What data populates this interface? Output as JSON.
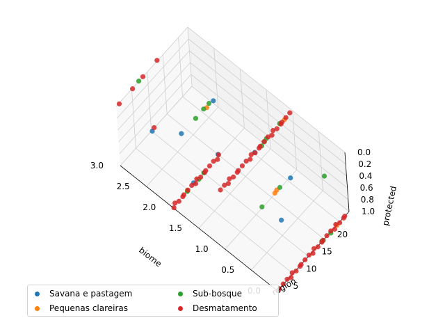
{
  "chart_data": {
    "type": "scatter",
    "title": "",
    "x_label": "biome",
    "y_label": "region",
    "z_label": "protected",
    "x_ticks": [
      "0.0",
      "0.5",
      "1.0",
      "1.5",
      "2.0",
      "2.5",
      "3.0"
    ],
    "y_ticks": [
      "5",
      "10",
      "15",
      "20"
    ],
    "z_ticks": [
      "0.0",
      "0.2",
      "0.4",
      "0.6",
      "0.8",
      "1.0"
    ],
    "x_range": [
      0,
      3
    ],
    "y_range": [
      0,
      23
    ],
    "z_range": [
      0,
      1
    ],
    "grid": true,
    "legend_position": "bottom-left",
    "series": [
      {
        "name": "Savana e pastagem",
        "color": "#1f77b4",
        "points": [
          [
            0,
            3,
            0
          ],
          [
            1,
            11,
            0
          ],
          [
            2,
            4,
            0
          ],
          [
            2,
            14,
            0
          ],
          [
            2,
            7,
            1
          ],
          [
            1,
            21,
            1
          ],
          [
            3,
            10,
            1
          ],
          [
            2,
            15,
            1
          ]
        ]
      },
      {
        "name": "Pequenas clareiras",
        "color": "#ff7f0e",
        "points": [
          [
            0,
            19,
            1
          ],
          [
            1,
            20,
            0
          ],
          [
            2,
            5,
            1
          ],
          [
            1,
            16,
            1
          ],
          [
            2,
            12,
            0
          ],
          [
            1,
            17,
            1
          ]
        ]
      },
      {
        "name": "Sub-bosque",
        "color": "#2ca02c",
        "points": [
          [
            0,
            15,
            1
          ],
          [
            1,
            14,
            0
          ],
          [
            0,
            14,
            1
          ],
          [
            1,
            15,
            0
          ],
          [
            1,
            12,
            1
          ],
          [
            1,
            13,
            0
          ],
          [
            2,
            8,
            1
          ],
          [
            2,
            9,
            0
          ],
          [
            2,
            10,
            1
          ],
          [
            2,
            11,
            0
          ],
          [
            1,
            18,
            1
          ],
          [
            1,
            19,
            0
          ],
          [
            0,
            17,
            1
          ],
          [
            0,
            16,
            0
          ],
          [
            2,
            5,
            1
          ],
          [
            2,
            13,
            0
          ],
          [
            3,
            7,
            0
          ]
        ]
      },
      {
        "name": "Desmatamento",
        "color": "#d62728",
        "points": [
          [
            0,
            0,
            1
          ],
          [
            0,
            1,
            1
          ],
          [
            0,
            2,
            1
          ],
          [
            0,
            3,
            1
          ],
          [
            0,
            4,
            1
          ],
          [
            0,
            5,
            1
          ],
          [
            0,
            6,
            1
          ],
          [
            0,
            7,
            1
          ],
          [
            0,
            8,
            1
          ],
          [
            0,
            9,
            1
          ],
          [
            0,
            10,
            1
          ],
          [
            0,
            11,
            1
          ],
          [
            0,
            12,
            1
          ],
          [
            0,
            13,
            1
          ],
          [
            0,
            14,
            1
          ],
          [
            0,
            15,
            1
          ],
          [
            0,
            16,
            1
          ],
          [
            0,
            17,
            1
          ],
          [
            0,
            18,
            1
          ],
          [
            0,
            19,
            1
          ],
          [
            0,
            20,
            1
          ],
          [
            0,
            21,
            1
          ],
          [
            0,
            22,
            1
          ],
          [
            1,
            0,
            0
          ],
          [
            1,
            1,
            0
          ],
          [
            1,
            2,
            0
          ],
          [
            1,
            3,
            0
          ],
          [
            1,
            4,
            0
          ],
          [
            1,
            5,
            0
          ],
          [
            1,
            6,
            0
          ],
          [
            1,
            7,
            0
          ],
          [
            1,
            8,
            0
          ],
          [
            1,
            9,
            0
          ],
          [
            1,
            10,
            0
          ],
          [
            1,
            11,
            0
          ],
          [
            1,
            12,
            0
          ],
          [
            1,
            13,
            0
          ],
          [
            1,
            14,
            0
          ],
          [
            1,
            15,
            0
          ],
          [
            1,
            16,
            0
          ],
          [
            1,
            17,
            0
          ],
          [
            1,
            18,
            0
          ],
          [
            1,
            19,
            0
          ],
          [
            1,
            20,
            0
          ],
          [
            1,
            21,
            0
          ],
          [
            1,
            22,
            0
          ],
          [
            2,
            0,
            1
          ],
          [
            2,
            1,
            1
          ],
          [
            2,
            2,
            1
          ],
          [
            2,
            3,
            1
          ],
          [
            2,
            4,
            1
          ],
          [
            2,
            5,
            1
          ],
          [
            2,
            6,
            1
          ],
          [
            2,
            7,
            1
          ],
          [
            2,
            8,
            1
          ],
          [
            2,
            9,
            1
          ],
          [
            2,
            10,
            1
          ],
          [
            2,
            11,
            1
          ],
          [
            2,
            12,
            1
          ],
          [
            2,
            13,
            1
          ],
          [
            2,
            14,
            1
          ],
          [
            2,
            15,
            1
          ],
          [
            3,
            1,
            0
          ],
          [
            3,
            5,
            0
          ],
          [
            3,
            9,
            0
          ],
          [
            3,
            11,
            1
          ],
          [
            3,
            13,
            0
          ]
        ]
      }
    ]
  },
  "legend": {
    "items": [
      {
        "label": "Savana e pastagem"
      },
      {
        "label": "Pequenas clareiras"
      },
      {
        "label": "Sub-bosque"
      },
      {
        "label": "Desmatamento"
      }
    ]
  }
}
